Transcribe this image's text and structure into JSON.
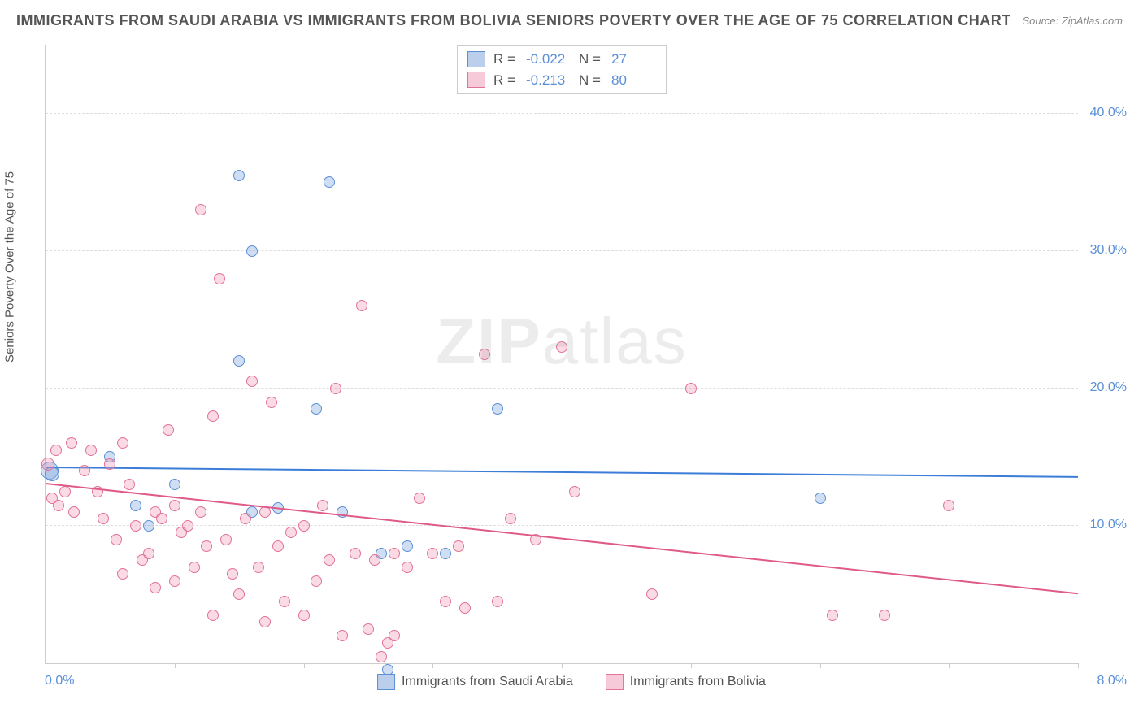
{
  "title": "IMMIGRANTS FROM SAUDI ARABIA VS IMMIGRANTS FROM BOLIVIA SENIORS POVERTY OVER THE AGE OF 75 CORRELATION CHART",
  "source": "Source: ZipAtlas.com",
  "watermark": "ZIPatlas",
  "y_axis_label": "Seniors Poverty Over the Age of 75",
  "chart": {
    "type": "scatter",
    "xlim": [
      0,
      8
    ],
    "ylim": [
      0,
      45
    ],
    "x_ticks": [
      0,
      1,
      2,
      3,
      4,
      5,
      6,
      7,
      8
    ],
    "x_tick_labels_shown": {
      "left": "0.0%",
      "right": "8.0%"
    },
    "y_gridlines": [
      10,
      20,
      30,
      40
    ],
    "y_tick_labels": [
      "10.0%",
      "20.0%",
      "30.0%",
      "40.0%"
    ],
    "background_color": "#ffffff",
    "grid_color": "#dddddd",
    "axis_color": "#cccccc",
    "marker_size": 14,
    "marker_size_large": 22,
    "series": [
      {
        "name": "Immigrants from Saudi Arabia",
        "color_fill": "rgba(120,160,220,0.35)",
        "color_stroke": "#5b8fd6",
        "R": "-0.022",
        "N": "27",
        "trend": {
          "y_start": 14.2,
          "y_end": 13.5,
          "color": "#3b7dd8"
        },
        "points": [
          {
            "x": 0.03,
            "y": 14.0,
            "size": 22
          },
          {
            "x": 0.05,
            "y": 13.8,
            "size": 18
          },
          {
            "x": 0.5,
            "y": 15.0
          },
          {
            "x": 0.7,
            "y": 11.5
          },
          {
            "x": 0.8,
            "y": 10.0
          },
          {
            "x": 1.0,
            "y": 13.0
          },
          {
            "x": 1.5,
            "y": 35.5
          },
          {
            "x": 1.5,
            "y": 22.0
          },
          {
            "x": 1.6,
            "y": 30.0
          },
          {
            "x": 1.6,
            "y": 11.0
          },
          {
            "x": 1.8,
            "y": 11.3
          },
          {
            "x": 2.1,
            "y": 18.5
          },
          {
            "x": 2.2,
            "y": 35.0
          },
          {
            "x": 2.3,
            "y": 11.0
          },
          {
            "x": 2.6,
            "y": 8.0
          },
          {
            "x": 2.8,
            "y": 8.5
          },
          {
            "x": 3.1,
            "y": 8.0
          },
          {
            "x": 3.5,
            "y": 18.5
          },
          {
            "x": 6.0,
            "y": 12.0
          },
          {
            "x": 2.65,
            "y": -0.5
          }
        ]
      },
      {
        "name": "Immigrants from Bolivia",
        "color_fill": "rgba(240,150,180,0.35)",
        "color_stroke": "#e27396",
        "R": "-0.213",
        "N": "80",
        "trend": {
          "y_start": 13.0,
          "y_end": 5.0,
          "color": "#e05a88"
        },
        "points": [
          {
            "x": 0.02,
            "y": 14.5,
            "size": 16
          },
          {
            "x": 0.05,
            "y": 12.0
          },
          {
            "x": 0.08,
            "y": 15.5
          },
          {
            "x": 0.1,
            "y": 11.5
          },
          {
            "x": 0.15,
            "y": 12.5
          },
          {
            "x": 0.2,
            "y": 16.0
          },
          {
            "x": 0.22,
            "y": 11.0
          },
          {
            "x": 0.3,
            "y": 14.0
          },
          {
            "x": 0.35,
            "y": 15.5
          },
          {
            "x": 0.4,
            "y": 12.5
          },
          {
            "x": 0.45,
            "y": 10.5
          },
          {
            "x": 0.5,
            "y": 14.5
          },
          {
            "x": 0.55,
            "y": 9.0
          },
          {
            "x": 0.6,
            "y": 16.0
          },
          {
            "x": 0.6,
            "y": 6.5
          },
          {
            "x": 0.65,
            "y": 13.0
          },
          {
            "x": 0.7,
            "y": 10.0
          },
          {
            "x": 0.75,
            "y": 7.5
          },
          {
            "x": 0.8,
            "y": 8.0
          },
          {
            "x": 0.85,
            "y": 11.0
          },
          {
            "x": 0.85,
            "y": 5.5
          },
          {
            "x": 0.9,
            "y": 10.5
          },
          {
            "x": 0.95,
            "y": 17.0
          },
          {
            "x": 1.0,
            "y": 11.5
          },
          {
            "x": 1.0,
            "y": 6.0
          },
          {
            "x": 1.05,
            "y": 9.5
          },
          {
            "x": 1.1,
            "y": 10.0
          },
          {
            "x": 1.15,
            "y": 7.0
          },
          {
            "x": 1.2,
            "y": 33.0
          },
          {
            "x": 1.2,
            "y": 11.0
          },
          {
            "x": 1.25,
            "y": 8.5
          },
          {
            "x": 1.3,
            "y": 18.0
          },
          {
            "x": 1.3,
            "y": 3.5
          },
          {
            "x": 1.35,
            "y": 28.0
          },
          {
            "x": 1.4,
            "y": 9.0
          },
          {
            "x": 1.45,
            "y": 6.5
          },
          {
            "x": 1.5,
            "y": 5.0
          },
          {
            "x": 1.55,
            "y": 10.5
          },
          {
            "x": 1.6,
            "y": 20.5
          },
          {
            "x": 1.65,
            "y": 7.0
          },
          {
            "x": 1.7,
            "y": 11.0
          },
          {
            "x": 1.7,
            "y": 3.0
          },
          {
            "x": 1.75,
            "y": 19.0
          },
          {
            "x": 1.8,
            "y": 8.5
          },
          {
            "x": 1.85,
            "y": 4.5
          },
          {
            "x": 1.9,
            "y": 9.5
          },
          {
            "x": 2.0,
            "y": 10.0
          },
          {
            "x": 2.0,
            "y": 3.5
          },
          {
            "x": 2.1,
            "y": 6.0
          },
          {
            "x": 2.15,
            "y": 11.5
          },
          {
            "x": 2.2,
            "y": 7.5
          },
          {
            "x": 2.25,
            "y": 20.0
          },
          {
            "x": 2.3,
            "y": 2.0
          },
          {
            "x": 2.4,
            "y": 8.0
          },
          {
            "x": 2.45,
            "y": 26.0
          },
          {
            "x": 2.5,
            "y": 2.5
          },
          {
            "x": 2.55,
            "y": 7.5
          },
          {
            "x": 2.6,
            "y": 0.5
          },
          {
            "x": 2.65,
            "y": 1.5
          },
          {
            "x": 2.7,
            "y": 8.0
          },
          {
            "x": 2.7,
            "y": 2.0
          },
          {
            "x": 2.8,
            "y": 7.0
          },
          {
            "x": 2.9,
            "y": 12.0
          },
          {
            "x": 3.0,
            "y": 8.0
          },
          {
            "x": 3.1,
            "y": 4.5
          },
          {
            "x": 3.2,
            "y": 8.5
          },
          {
            "x": 3.25,
            "y": 4.0
          },
          {
            "x": 3.4,
            "y": 22.5
          },
          {
            "x": 3.5,
            "y": 4.5
          },
          {
            "x": 3.6,
            "y": 10.5
          },
          {
            "x": 3.8,
            "y": 9.0
          },
          {
            "x": 4.0,
            "y": 23.0
          },
          {
            "x": 4.1,
            "y": 12.5
          },
          {
            "x": 4.7,
            "y": 5.0
          },
          {
            "x": 5.0,
            "y": 20.0
          },
          {
            "x": 6.1,
            "y": 3.5
          },
          {
            "x": 6.5,
            "y": 3.5
          },
          {
            "x": 7.0,
            "y": 11.5
          }
        ]
      }
    ]
  },
  "colors": {
    "title": "#555555",
    "source": "#888888",
    "axis_text": "#5b8fd6",
    "blue_series": "#5b8fd6",
    "pink_series": "#e27396",
    "blue_line": "#3b7dd8",
    "pink_line": "#e05a88"
  }
}
